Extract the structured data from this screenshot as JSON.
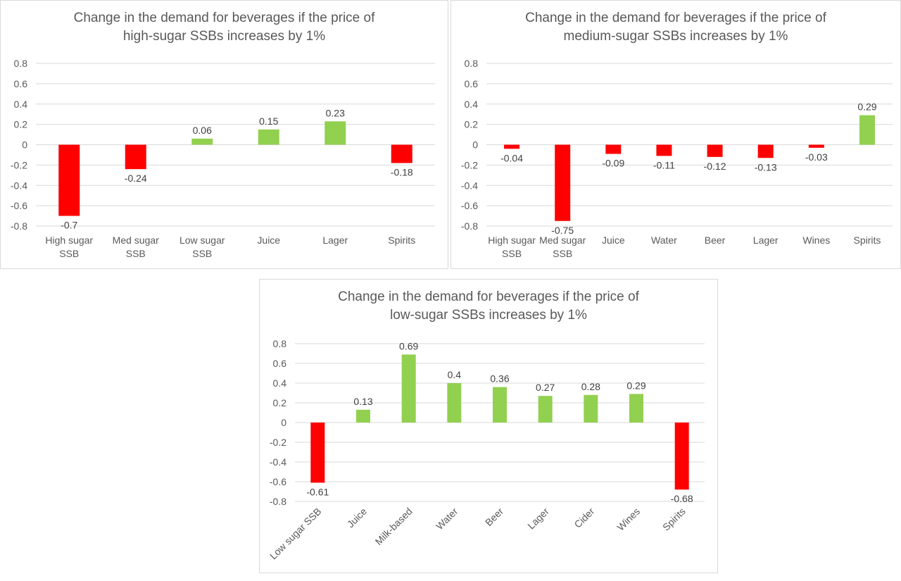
{
  "colors": {
    "positive": "#92d050",
    "negative": "#ff0000",
    "grid": "#d9d9d9",
    "text": "#595959",
    "label": "#404040"
  },
  "chart_data": [
    {
      "type": "bar",
      "title_lines": [
        "Change in the demand for beverages if the price of",
        "high-sugar SSBs increases by 1%"
      ],
      "categories": [
        [
          "High sugar",
          "SSB"
        ],
        [
          "Med sugar",
          "SSB"
        ],
        [
          "Low sugar",
          "SSB"
        ],
        [
          "Juice"
        ],
        [
          "Lager"
        ],
        [
          "Spirits"
        ]
      ],
      "values": [
        -0.7,
        -0.24,
        0.06,
        0.15,
        0.23,
        -0.18
      ],
      "data_labels": [
        "-0.7",
        "-0.24",
        "0.06",
        "0.15",
        "0.23",
        "-0.18"
      ],
      "ylim": [
        -0.8,
        0.8
      ],
      "yticks": [
        "0.8",
        "0.6",
        "0.4",
        "0.2",
        "0",
        "-0.2",
        "-0.4",
        "-0.6",
        "-0.8"
      ],
      "grid": true,
      "legend": "none",
      "label_rotation": "horizontal"
    },
    {
      "type": "bar",
      "title_lines": [
        "Change in the demand for beverages if the price of",
        "medium-sugar SSBs increases by 1%"
      ],
      "categories": [
        [
          "High sugar",
          "SSB"
        ],
        [
          "Med sugar",
          "SSB"
        ],
        [
          "Juice"
        ],
        [
          "Water"
        ],
        [
          "Beer"
        ],
        [
          "Lager"
        ],
        [
          "Wines"
        ],
        [
          "Spirits"
        ]
      ],
      "values": [
        -0.04,
        -0.75,
        -0.09,
        -0.11,
        -0.12,
        -0.13,
        -0.03,
        0.29
      ],
      "data_labels": [
        "-0.04",
        "-0.75",
        "-0.09",
        "-0.11",
        "-0.12",
        "-0.13",
        "-0.03",
        "0.29"
      ],
      "ylim": [
        -0.8,
        0.8
      ],
      "yticks": [
        "0.8",
        "0.6",
        "0.4",
        "0.2",
        "0",
        "-0.2",
        "-0.4",
        "-0.6",
        "-0.8"
      ],
      "grid": true,
      "legend": "none",
      "label_rotation": "horizontal"
    },
    {
      "type": "bar",
      "title_lines": [
        "Change in the demand for beverages if the price of",
        "low-sugar SSBs increases by 1%"
      ],
      "categories": [
        [
          "Low sugar SSB"
        ],
        [
          "Juice"
        ],
        [
          "Milk-based"
        ],
        [
          "Water"
        ],
        [
          "Beer"
        ],
        [
          "Lager"
        ],
        [
          "Cider"
        ],
        [
          "Wines"
        ],
        [
          "Spirits"
        ]
      ],
      "values": [
        -0.61,
        0.13,
        0.69,
        0.4,
        0.36,
        0.27,
        0.28,
        0.29,
        -0.68
      ],
      "data_labels": [
        "-0.61",
        "0.13",
        "0.69",
        "0.4",
        "0.36",
        "0.27",
        "0.28",
        "0.29",
        "-0.68"
      ],
      "ylim": [
        -0.8,
        0.8
      ],
      "yticks": [
        "0.8",
        "0.6",
        "0.4",
        "0.2",
        "0",
        "-0.2",
        "-0.4",
        "-0.6",
        "-0.8"
      ],
      "grid": true,
      "legend": "none",
      "label_rotation": "rotated"
    }
  ]
}
